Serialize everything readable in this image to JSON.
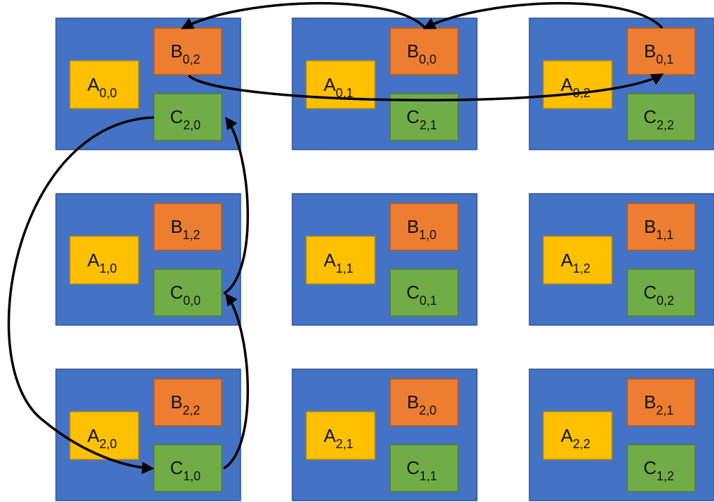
{
  "colors": {
    "processor": "#4472C4",
    "processor_border": "#2F5597",
    "a_block": "#FFC000",
    "a_border": "#BF9000",
    "b_block": "#ED7D31",
    "b_border": "#AE5A21",
    "c_block": "#70AD47",
    "c_border": "#507E32",
    "arrow": "#000000"
  },
  "grid": [
    [
      {
        "a": {
          "letter": "A",
          "sub": "0,0"
        },
        "b": {
          "letter": "B",
          "sub": "0,2"
        },
        "c": {
          "letter": "C",
          "sub": "2,0"
        }
      },
      {
        "a": {
          "letter": "A",
          "sub": "0,1"
        },
        "b": {
          "letter": "B",
          "sub": "0,0"
        },
        "c": {
          "letter": "C",
          "sub": "2,1"
        }
      },
      {
        "a": {
          "letter": "A",
          "sub": "0,2"
        },
        "b": {
          "letter": "B",
          "sub": "0,1"
        },
        "c": {
          "letter": "C",
          "sub": "2,2"
        }
      }
    ],
    [
      {
        "a": {
          "letter": "A",
          "sub": "1,0"
        },
        "b": {
          "letter": "B",
          "sub": "1,2"
        },
        "c": {
          "letter": "C",
          "sub": "0,0"
        }
      },
      {
        "a": {
          "letter": "A",
          "sub": "1,1"
        },
        "b": {
          "letter": "B",
          "sub": "1,0"
        },
        "c": {
          "letter": "C",
          "sub": "0,1"
        }
      },
      {
        "a": {
          "letter": "A",
          "sub": "1,2"
        },
        "b": {
          "letter": "B",
          "sub": "1,1"
        },
        "c": {
          "letter": "C",
          "sub": "0,2"
        }
      }
    ],
    [
      {
        "a": {
          "letter": "A",
          "sub": "2,0"
        },
        "b": {
          "letter": "B",
          "sub": "2,2"
        },
        "c": {
          "letter": "C",
          "sub": "1,0"
        }
      },
      {
        "a": {
          "letter": "A",
          "sub": "2,1"
        },
        "b": {
          "letter": "B",
          "sub": "2,0"
        },
        "c": {
          "letter": "C",
          "sub": "1,1"
        }
      },
      {
        "a": {
          "letter": "A",
          "sub": "2,2"
        },
        "b": {
          "letter": "B",
          "sub": "2,1"
        },
        "c": {
          "letter": "C",
          "sub": "1,2"
        }
      }
    ]
  ]
}
